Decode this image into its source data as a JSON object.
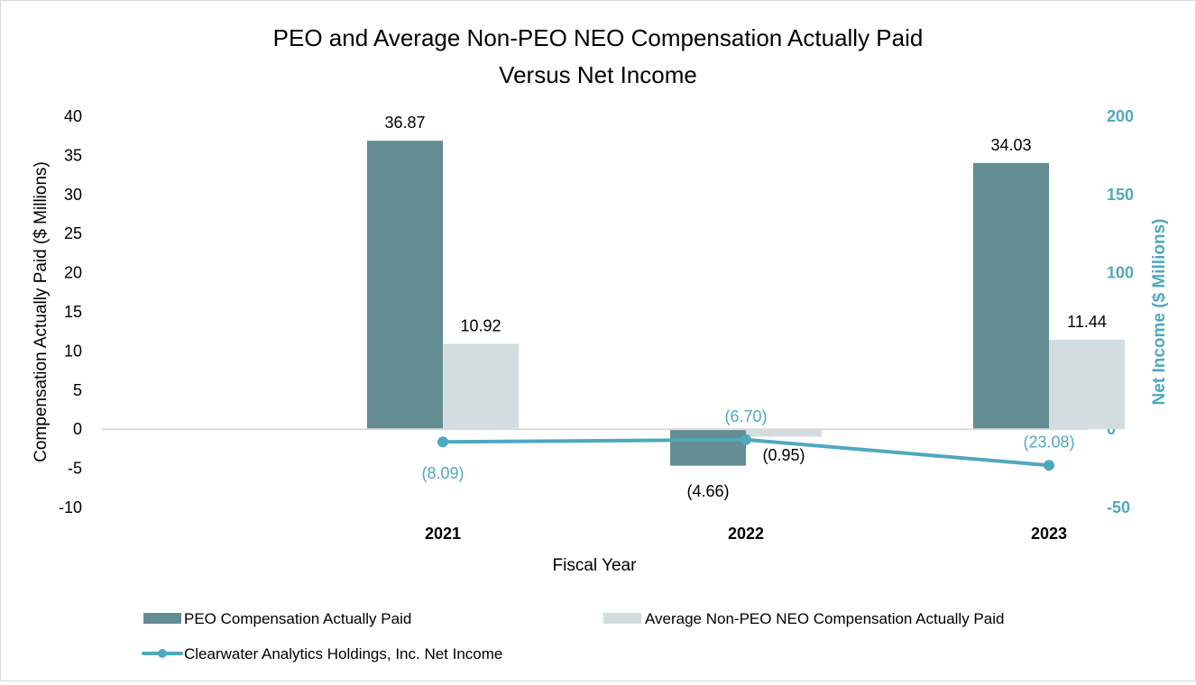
{
  "chart_data": {
    "type": "bar",
    "title_lines": [
      "PEO and Average Non-PEO NEO Compensation Actually Paid",
      "Versus Net Income"
    ],
    "xlabel": "Fiscal Year",
    "ylabel": "Compensation Actually Paid ($ Millions)",
    "y2label": "Net Income ($ Millions)",
    "categories": [
      "2021",
      "2022",
      "2023"
    ],
    "ylim": [
      -10,
      40
    ],
    "yticks": [
      -10,
      -5,
      0,
      5,
      10,
      15,
      20,
      25,
      30,
      35,
      40
    ],
    "y2lim": [
      -50,
      200
    ],
    "y2ticks": [
      -50,
      0,
      50,
      100,
      150,
      200
    ],
    "grid": false,
    "legend_position": "bottom",
    "series": [
      {
        "name": "PEO Compensation Actually Paid",
        "kind": "bar",
        "axis": "left",
        "color": "#638d92",
        "values": [
          36.87,
          -4.66,
          34.03
        ],
        "labels": [
          "36.87",
          "(4.66)",
          "34.03"
        ]
      },
      {
        "name": "Average Non-PEO NEO Compensation Actually Paid",
        "kind": "bar",
        "axis": "left",
        "color": "#d3dcde",
        "values": [
          10.92,
          -0.95,
          11.44
        ],
        "labels": [
          "10.92",
          "(0.95)",
          "11.44"
        ]
      },
      {
        "name": "Clearwater Analytics Holdings, Inc. Net Income",
        "kind": "line",
        "axis": "right",
        "color": "#4fa8bd",
        "values": [
          -8.09,
          -6.7,
          -23.08
        ],
        "labels": [
          "(8.09)",
          "(6.70)",
          "(23.08)"
        ]
      }
    ]
  }
}
